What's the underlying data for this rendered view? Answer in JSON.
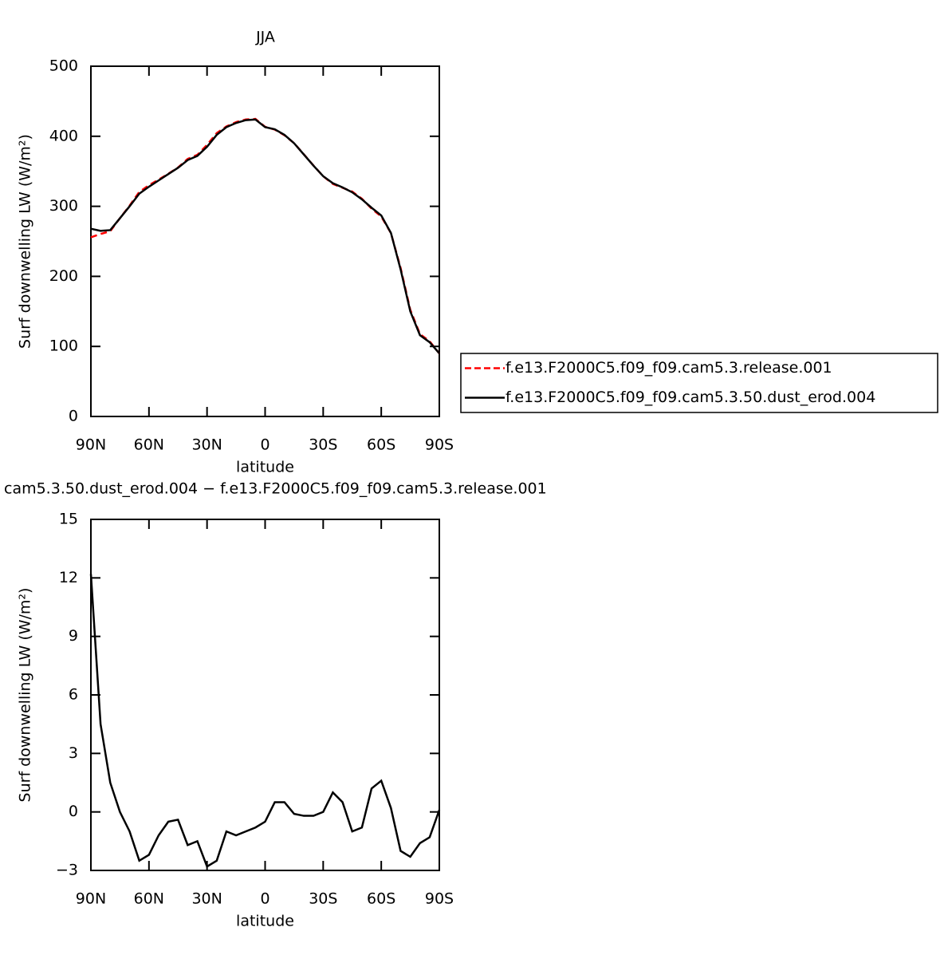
{
  "chart_data": [
    {
      "type": "line",
      "title": "JJA",
      "x_label": "latitude",
      "y_label": "Surf downwelling LW (W/m²)",
      "x": [
        90,
        85,
        80,
        75,
        70,
        65,
        60,
        55,
        50,
        45,
        40,
        35,
        30,
        25,
        20,
        15,
        10,
        5,
        0,
        -5,
        -10,
        -15,
        -20,
        -25,
        -30,
        -35,
        -40,
        -45,
        -50,
        -55,
        -60,
        -65,
        -70,
        -75,
        -80,
        -85,
        -90
      ],
      "series": [
        {
          "name": "f.e13.F2000C5.f09_f09.cam5.3.release.001",
          "color": "#ff0000",
          "dash": "dashed",
          "values": [
            255.8,
            260.5,
            264.5,
            283,
            301,
            320.5,
            330.2,
            338.2,
            346.5,
            355.4,
            367.7,
            373.5,
            387.8,
            404.5,
            414,
            420.2,
            424,
            424.8,
            413.5,
            409.5,
            401.5,
            390.1,
            374.2,
            358.2,
            343,
            332,
            326.5,
            321,
            310.8,
            296.8,
            285.4,
            261.8,
            212,
            152.3,
            117.6,
            107.3,
            89.9
          ]
        },
        {
          "name": "f.e13.F2000C5.f09_f09.cam5.3.50.dust_erod.004",
          "color": "#000000",
          "dash": "solid",
          "values": [
            268,
            265,
            266,
            283,
            300,
            318,
            328,
            337,
            346,
            355,
            366,
            372,
            385,
            402,
            413,
            419,
            423,
            424,
            413,
            410,
            402,
            390,
            374,
            358,
            343,
            333,
            327,
            320,
            310,
            298,
            287,
            262,
            210,
            150,
            116,
            106,
            90
          ]
        }
      ],
      "xlim": [
        90,
        -90
      ],
      "xticks": [
        {
          "value": 90,
          "label": "90N"
        },
        {
          "value": 60,
          "label": "60N"
        },
        {
          "value": 30,
          "label": "30N"
        },
        0,
        {
          "value": -30,
          "label": "30S"
        },
        {
          "value": -60,
          "label": "60S"
        },
        {
          "value": -90,
          "label": "90S"
        }
      ],
      "ylim": [
        0,
        500
      ],
      "yticks": [
        0,
        100,
        200,
        300,
        400,
        500
      ],
      "legend": "right"
    },
    {
      "type": "line",
      "title": "cam5.3.50.dust_erod.004 − f.e13.F2000C5.f09_f09.cam5.3.release.001",
      "x_label": "latitude",
      "y_label": "Surf downwelling LW (W/m²)",
      "x": [
        90,
        85,
        80,
        75,
        70,
        65,
        60,
        55,
        50,
        45,
        40,
        35,
        30,
        25,
        20,
        15,
        10,
        5,
        0,
        -5,
        -10,
        -15,
        -20,
        -25,
        -30,
        -35,
        -40,
        -45,
        -50,
        -55,
        -60,
        -65,
        -70,
        -75,
        -80,
        -85,
        -90
      ],
      "series": [
        {
          "color": "#000000",
          "dash": "solid",
          "values": [
            12.2,
            4.5,
            1.5,
            0,
            -1,
            -2.5,
            -2.2,
            -1.2,
            -0.5,
            -0.4,
            -1.7,
            -1.5,
            -2.8,
            -2.5,
            -1,
            -1.2,
            -1,
            -0.8,
            -0.5,
            0.5,
            0.5,
            -0.1,
            -0.2,
            -0.2,
            0,
            1,
            0.5,
            -1,
            -0.8,
            1.2,
            1.6,
            0.2,
            -2,
            -2.3,
            -1.6,
            -1.3,
            0.1
          ]
        }
      ],
      "xlim": [
        90,
        -90
      ],
      "xticks": [
        {
          "value": 90,
          "label": "90N"
        },
        {
          "value": 60,
          "label": "60N"
        },
        {
          "value": 30,
          "label": "30N"
        },
        0,
        {
          "value": -30,
          "label": "30S"
        },
        {
          "value": -60,
          "label": "60S"
        },
        {
          "value": -90,
          "label": "90S"
        }
      ],
      "ylim": [
        -3,
        15
      ],
      "yticks": [
        {
          "value": -3,
          "label": "−3"
        },
        0,
        3,
        6,
        9,
        12,
        15
      ]
    }
  ]
}
